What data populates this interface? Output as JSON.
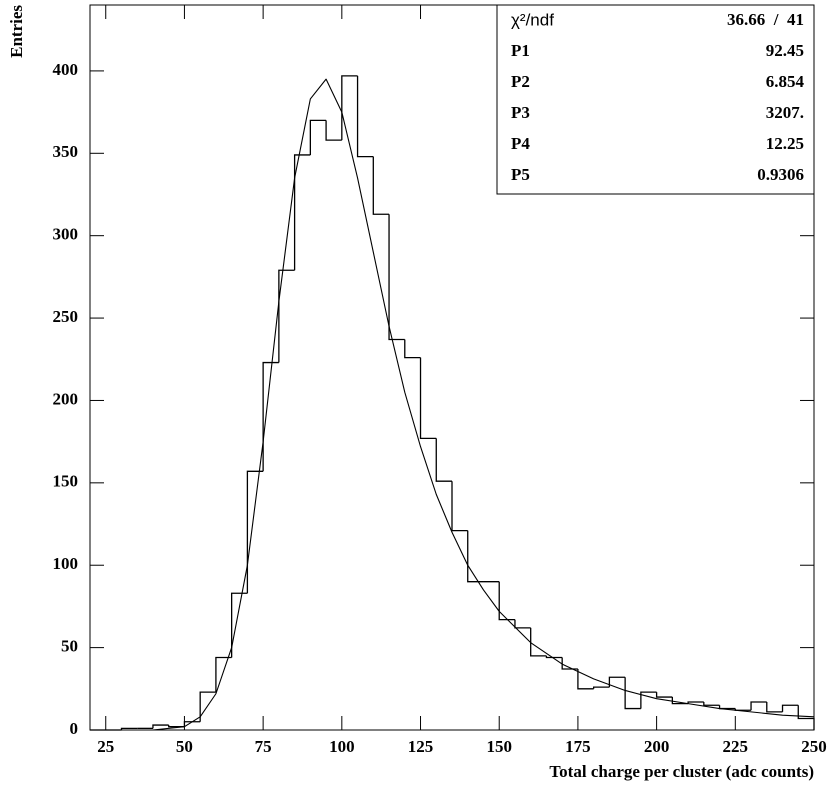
{
  "chart_data": {
    "type": "histogram",
    "xlabel": "Total charge per cluster (adc counts)",
    "ylabel": "Entries",
    "bins": [
      20,
      25,
      30,
      35,
      40,
      45,
      50,
      55,
      60,
      65,
      70,
      75,
      80,
      85,
      90,
      95,
      100,
      105,
      110,
      115,
      120,
      125,
      130,
      135,
      140,
      145,
      150,
      155,
      160,
      165,
      170,
      175,
      180,
      185,
      190,
      195,
      200,
      205,
      210,
      215,
      220,
      225,
      230,
      235,
      240,
      245,
      250
    ],
    "values": [
      0,
      0,
      1,
      1,
      3,
      2,
      5,
      23,
      44,
      83,
      157,
      223,
      279,
      349,
      370,
      358,
      397,
      348,
      313,
      237,
      226,
      177,
      151,
      121,
      90,
      90,
      67,
      62,
      45,
      44,
      37,
      25,
      26,
      32,
      13,
      23,
      20,
      16,
      17,
      15,
      13,
      12,
      17,
      11,
      15,
      7
    ],
    "color": "#000000",
    "fit": {
      "x": [
        40,
        50,
        55,
        60,
        65,
        70,
        75,
        80,
        85,
        90,
        95,
        100,
        105,
        110,
        115,
        120,
        125,
        130,
        135,
        140,
        145,
        150,
        160,
        170,
        180,
        190,
        200,
        210,
        220,
        230,
        240,
        250
      ],
      "values": [
        0,
        2,
        8,
        22,
        50,
        100,
        175,
        260,
        335,
        383,
        395,
        375,
        335,
        290,
        245,
        205,
        172,
        143,
        120,
        100,
        85,
        72,
        53,
        40,
        31,
        24,
        19,
        16,
        13,
        11,
        9,
        8
      ]
    },
    "xlim": [
      20,
      250
    ],
    "ylim": [
      0,
      440
    ],
    "xticks": [
      25,
      50,
      75,
      100,
      125,
      150,
      175,
      200,
      225,
      250
    ],
    "yticks": [
      0,
      50,
      100,
      150,
      200,
      250,
      300,
      350,
      400
    ],
    "stats": [
      {
        "label": "χ²/ndf",
        "value": "36.66  /  41"
      },
      {
        "label": "P1",
        "value": "92.45"
      },
      {
        "label": "P2",
        "value": "6.854"
      },
      {
        "label": "P3",
        "value": "3207."
      },
      {
        "label": "P4",
        "value": "12.25"
      },
      {
        "label": "P5",
        "value": "0.9306"
      }
    ]
  }
}
